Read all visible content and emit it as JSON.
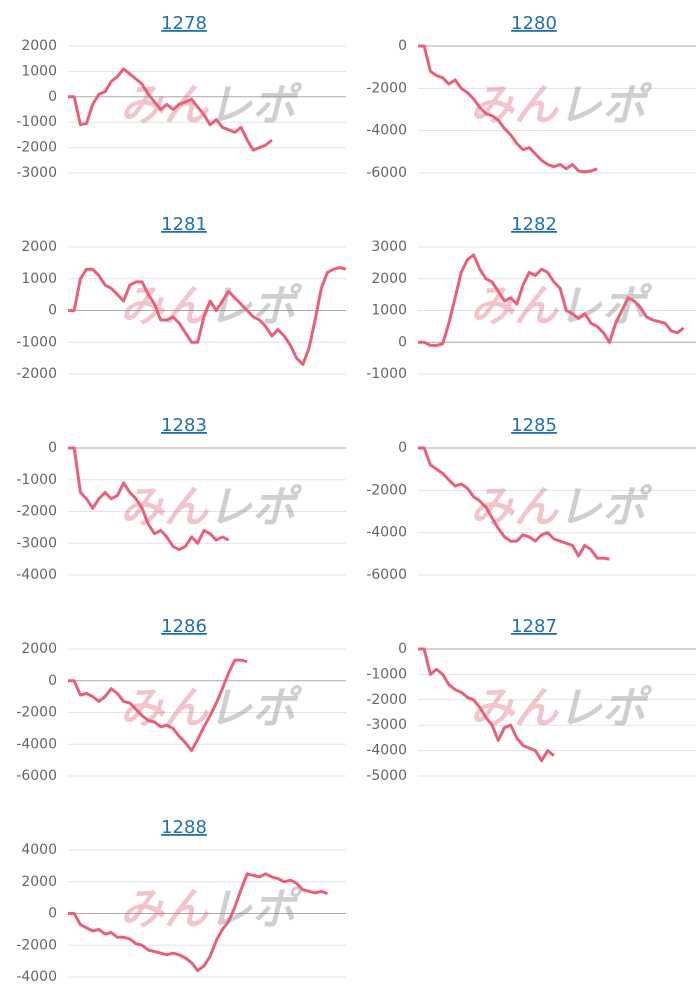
{
  "watermark": [
    "みん",
    "レポ"
  ],
  "chart_data": [
    {
      "type": "line",
      "title": "1278",
      "color": "#e8607a",
      "grid": true,
      "ylim": [
        -3000,
        2000
      ],
      "yticks": [
        2000,
        1000,
        0,
        -1000,
        -2000,
        -3000
      ],
      "values": [
        0,
        0,
        -1100,
        -1050,
        -300,
        100,
        200,
        600,
        800,
        1100,
        900,
        700,
        500,
        100,
        -200,
        -500,
        -300,
        -500,
        -300,
        -200,
        -100,
        -400,
        -700,
        -1100,
        -900,
        -1200,
        -1300,
        -1400,
        -1200,
        -1700,
        -2100,
        -2000,
        -1900,
        -1700
      ]
    },
    {
      "type": "line",
      "title": "1280",
      "color": "#e8607a",
      "grid": true,
      "ylim": [
        -6000,
        0
      ],
      "yticks": [
        0,
        -2000,
        -4000,
        -6000
      ],
      "values": [
        0,
        0,
        -1200,
        -1400,
        -1500,
        -1800,
        -1600,
        -2000,
        -2200,
        -2500,
        -2900,
        -3200,
        -3300,
        -3500,
        -3900,
        -4200,
        -4600,
        -4900,
        -4800,
        -5100,
        -5400,
        -5600,
        -5700,
        -5600,
        -5800,
        -5600,
        -5900,
        -5950,
        -5900,
        -5800
      ]
    },
    {
      "type": "line",
      "title": "1281",
      "color": "#e8607a",
      "grid": true,
      "ylim": [
        -2000,
        2000
      ],
      "yticks": [
        2000,
        1000,
        0,
        -1000,
        -2000
      ],
      "values": [
        0,
        0,
        1000,
        1300,
        1300,
        1100,
        800,
        700,
        500,
        300,
        800,
        900,
        900,
        500,
        200,
        -300,
        -300,
        -200,
        -400,
        -700,
        -1000,
        -1000,
        -200,
        300,
        0,
        300,
        600,
        400,
        200,
        0,
        -200,
        -300,
        -500,
        -800,
        -600,
        -800,
        -1100,
        -1500,
        -1700,
        -1200,
        -300,
        700,
        1200,
        1300,
        1350,
        1300
      ]
    },
    {
      "type": "line",
      "title": "1282",
      "color": "#e8607a",
      "grid": true,
      "ylim": [
        -1000,
        3000
      ],
      "yticks": [
        3000,
        2000,
        1000,
        0,
        -1000
      ],
      "values": [
        0,
        0,
        -100,
        -100,
        -50,
        600,
        1400,
        2200,
        2600,
        2750,
        2300,
        2000,
        1900,
        1600,
        1300,
        1400,
        1200,
        1800,
        2200,
        2100,
        2300,
        2200,
        1900,
        1700,
        1000,
        900,
        750,
        900,
        600,
        500,
        300,
        0,
        600,
        1000,
        1400,
        1300,
        1100,
        800,
        700,
        650,
        600,
        350,
        300,
        450
      ]
    },
    {
      "type": "line",
      "title": "1283",
      "color": "#e8607a",
      "grid": true,
      "ylim": [
        -4000,
        0
      ],
      "yticks": [
        0,
        -1000,
        -2000,
        -3000,
        -4000
      ],
      "values": [
        0,
        0,
        -1400,
        -1600,
        -1900,
        -1600,
        -1400,
        -1600,
        -1500,
        -1100,
        -1400,
        -1600,
        -1900,
        -2400,
        -2700,
        -2600,
        -2800,
        -3100,
        -3200,
        -3100,
        -2800,
        -3000,
        -2600,
        -2700,
        -2900,
        -2800,
        -2900
      ]
    },
    {
      "type": "line",
      "title": "1285",
      "color": "#e8607a",
      "grid": true,
      "ylim": [
        -6000,
        0
      ],
      "yticks": [
        0,
        -2000,
        -4000,
        -6000
      ],
      "values": [
        0,
        0,
        -800,
        -1000,
        -1200,
        -1500,
        -1800,
        -1700,
        -1900,
        -2300,
        -2500,
        -2800,
        -3300,
        -3800,
        -4200,
        -4400,
        -4400,
        -4100,
        -4200,
        -4400,
        -4100,
        -4000,
        -4300,
        -4400,
        -4500,
        -4600,
        -5100,
        -4600,
        -4800,
        -5200,
        -5200,
        -5250
      ]
    },
    {
      "type": "line",
      "title": "1286",
      "color": "#e8607a",
      "grid": true,
      "ylim": [
        -6000,
        2000
      ],
      "yticks": [
        2000,
        0,
        -2000,
        -4000,
        -6000
      ],
      "values": [
        0,
        0,
        -900,
        -800,
        -1000,
        -1300,
        -1000,
        -500,
        -800,
        -1300,
        -1400,
        -1800,
        -2200,
        -2500,
        -2600,
        -2900,
        -2800,
        -3000,
        -3500,
        -3900,
        -4400,
        -3700,
        -2900,
        -2200,
        -1400,
        -500,
        500,
        1300,
        1300,
        1200
      ]
    },
    {
      "type": "line",
      "title": "1287",
      "color": "#e8607a",
      "grid": true,
      "ylim": [
        -5000,
        0
      ],
      "yticks": [
        0,
        -1000,
        -2000,
        -3000,
        -4000,
        -5000
      ],
      "values": [
        0,
        0,
        -1000,
        -800,
        -1000,
        -1400,
        -1600,
        -1700,
        -1900,
        -2000,
        -2300,
        -2700,
        -3000,
        -3600,
        -3100,
        -3000,
        -3500,
        -3800,
        -3900,
        -4000,
        -4400,
        -4000,
        -4200
      ]
    },
    {
      "type": "line",
      "title": "1288",
      "color": "#e8607a",
      "grid": true,
      "ylim": [
        -4000,
        4000
      ],
      "yticks": [
        4000,
        2000,
        0,
        -2000,
        -4000
      ],
      "values": [
        0,
        0,
        -700,
        -900,
        -1100,
        -1000,
        -1300,
        -1200,
        -1500,
        -1500,
        -1600,
        -1900,
        -2000,
        -2300,
        -2400,
        -2500,
        -2600,
        -2500,
        -2600,
        -2800,
        -3100,
        -3600,
        -3300,
        -2700,
        -1700,
        -1000,
        -500,
        400,
        1500,
        2500,
        2400,
        2300,
        2500,
        2300,
        2200,
        2000,
        2100,
        1900,
        1500,
        1400,
        1300,
        1400,
        1250
      ]
    }
  ]
}
